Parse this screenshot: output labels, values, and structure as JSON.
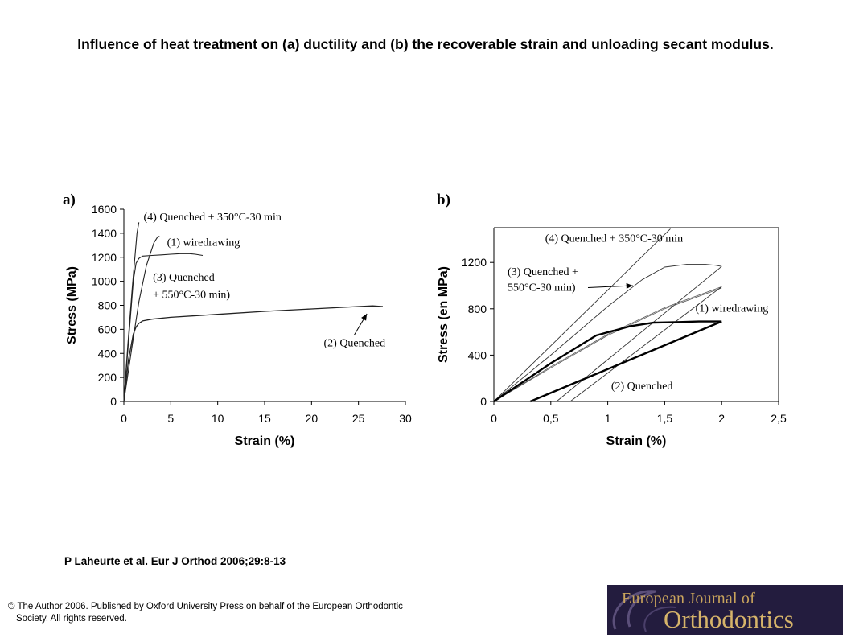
{
  "title": "Influence of heat treatment on (a) ductility and (b) the recoverable strain and unloading secant modulus.",
  "citation": "P Laheurte et al. Eur J Orthod 2006;29:8-13",
  "copyright": {
    "line1": "© The Author 2006. Published by Oxford University Press on behalf of the European Orthodontic",
    "line2": "Society. All rights reserved."
  },
  "logo": {
    "line1": "European Journal of",
    "line2": "Orthodontics",
    "bg": "#231c3e",
    "text_color": "#c9a45c"
  },
  "chart_data": [
    {
      "type": "line",
      "panel_label": "a)",
      "xlabel": "Strain (%)",
      "ylabel": "Stress (MPa)",
      "xlim": [
        0,
        30
      ],
      "ylim": [
        0,
        1600
      ],
      "xticks": [
        0,
        5,
        10,
        15,
        20,
        25,
        30
      ],
      "yticks": [
        0,
        200,
        400,
        600,
        800,
        1000,
        1200,
        1400,
        1600
      ],
      "xtick_labels": [
        "0",
        "5",
        "10",
        "15",
        "20",
        "25",
        "30"
      ],
      "ytick_labels": [
        "0",
        "200",
        "400",
        "600",
        "800",
        "1000",
        "1200",
        "1400",
        "1600"
      ],
      "grid": false,
      "series": [
        {
          "name": "(4) Quenched + 350°C-30 min",
          "x": [
            0,
            0.4,
            0.9,
            1.4,
            1.6
          ],
          "y": [
            0,
            450,
            950,
            1400,
            1490
          ]
        },
        {
          "name": "(1) wiredrawing",
          "x": [
            0,
            0.8,
            1.6,
            2.4,
            3.2,
            3.6,
            3.8
          ],
          "y": [
            0,
            420,
            830,
            1130,
            1320,
            1370,
            1375
          ]
        },
        {
          "name": "(3) Quenched + 550°C-30 min)",
          "x": [
            0,
            0.5,
            1.0,
            1.3,
            1.6,
            2.0,
            3.0,
            4.0,
            5.0,
            6.0,
            7.0,
            7.6,
            8.4
          ],
          "y": [
            0,
            500,
            1000,
            1150,
            1190,
            1210,
            1215,
            1220,
            1225,
            1230,
            1230,
            1225,
            1215
          ]
        },
        {
          "name": "(2) Quenched",
          "x": [
            0,
            0.5,
            1.0,
            1.3,
            1.6,
            2.0,
            3.0,
            5.0,
            10.0,
            15.0,
            20.0,
            25.0,
            26.5,
            27.6
          ],
          "y": [
            0,
            350,
            560,
            620,
            650,
            670,
            685,
            700,
            725,
            750,
            770,
            790,
            795,
            790
          ]
        }
      ],
      "annotations": [
        {
          "text": "(4) Quenched + 350°C-30 min",
          "label_x": 2.1,
          "label_y": 1505
        },
        {
          "text": "(1) wiredrawing",
          "label_x": 4.6,
          "label_y": 1295
        },
        {
          "text": "(3) Quenched",
          "label_x": 3.1,
          "label_y": 1005
        },
        {
          "text": "+ 550°C-30 min)",
          "label_x": 3.1,
          "label_y": 860
        },
        {
          "text": "(2) Quenched",
          "label_x": 21.3,
          "label_y": 460,
          "arrow_to": [
            25.9,
            730
          ]
        }
      ]
    },
    {
      "type": "line",
      "panel_label": "b)",
      "xlabel": "Strain (%)",
      "ylabel": "Stress (en MPa)",
      "xlim": [
        0,
        2.5
      ],
      "ylim": [
        0,
        1500
      ],
      "xticks": [
        0,
        0.5,
        1,
        1.5,
        2,
        2.5
      ],
      "yticks": [
        0,
        400,
        800,
        1200
      ],
      "xtick_labels": [
        "0",
        "0,5",
        "1",
        "1,5",
        "2",
        "2,5"
      ],
      "ytick_labels": [
        "0",
        "400",
        "800",
        "1200"
      ],
      "grid": false,
      "series": [
        {
          "name": "(4) Quenched + 350°C-30 min",
          "x": [
            0,
            1.55
          ],
          "y": [
            0,
            1490
          ]
        },
        {
          "name": "(3) Quenched + 550°C-30 min) loading",
          "x": [
            0,
            0.5,
            1.0,
            1.3,
            1.5,
            1.7,
            1.85,
            1.95,
            2.0
          ],
          "y": [
            0,
            400,
            820,
            1050,
            1160,
            1185,
            1185,
            1175,
            1165
          ]
        },
        {
          "name": "(3) Quenched + 550°C-30 min) unloading",
          "x": [
            2.0,
            0.55
          ],
          "y": [
            1165,
            0
          ]
        },
        {
          "name": "(1) wiredrawing loading",
          "x": [
            0,
            0.5,
            1.0,
            1.5,
            2.0
          ],
          "y": [
            0,
            300,
            580,
            810,
            990
          ]
        },
        {
          "name": "(1) wiredrawing loading 2",
          "x": [
            0,
            0.5,
            1.0,
            1.5,
            2.0
          ],
          "y": [
            0,
            290,
            570,
            800,
            980
          ]
        },
        {
          "name": "(1) wiredrawing unloading",
          "x": [
            2.0,
            0.67
          ],
          "y": [
            990,
            0
          ]
        },
        {
          "name": "(2) Quenched loading",
          "x": [
            0,
            0.5,
            0.9,
            1.2,
            1.4,
            1.6,
            1.8,
            2.0
          ],
          "y": [
            0,
            330,
            570,
            650,
            680,
            685,
            690,
            690
          ]
        },
        {
          "name": "(2) Quenched unloading",
          "x": [
            2.0,
            1.95,
            0.32
          ],
          "y": [
            690,
            670,
            0
          ]
        }
      ],
      "annotations": [
        {
          "text": "(4) Quenched + 350°C-30 min",
          "label_x": 0.45,
          "label_y": 1380
        },
        {
          "text": "(3) Quenched +",
          "label_x": 0.12,
          "label_y": 1090
        },
        {
          "text": "550°C-30 min)",
          "label_x": 0.12,
          "label_y": 955,
          "arrow_to": [
            1.22,
            1000
          ]
        },
        {
          "text": "(1) wiredrawing",
          "label_x": 1.77,
          "label_y": 775
        },
        {
          "text": "(2) Quenched",
          "label_x": 1.03,
          "label_y": 105
        }
      ]
    }
  ]
}
